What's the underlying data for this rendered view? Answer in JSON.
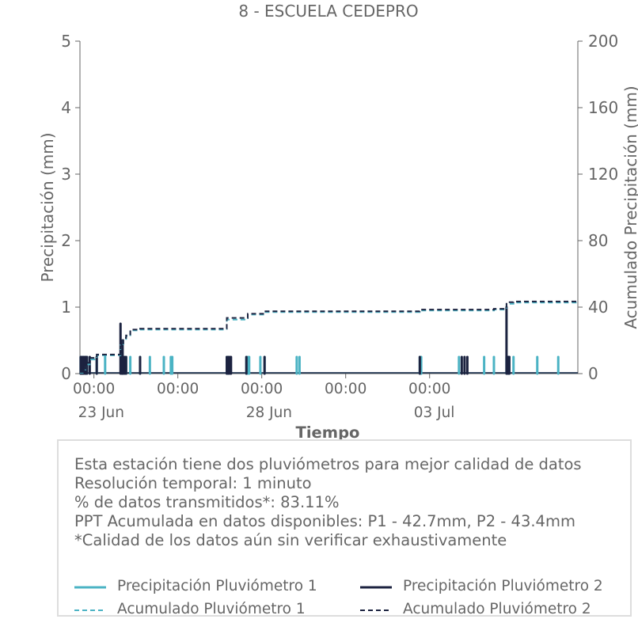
{
  "title": "8 - ESCUELA CEDEPRO",
  "colors": {
    "p1": "#4bb3c4",
    "p2": "#1c2340",
    "axis": "#666666",
    "box_border": "#dddddd"
  },
  "notes": [
    "Esta estación tiene dos pluviómetros para mejor calidad de datos",
    "Resolución temporal: 1 minuto",
    "% de datos transmitidos*: 83.11%",
    "PPT Acumulada en datos disponibles: P1 - 42.7mm, P2 - 43.4mm",
    "*Calidad de los datos aún sin verificar exhaustivamente"
  ],
  "legend": [
    {
      "label": "Precipitación Pluviómetro 1",
      "color": "#4bb3c4",
      "style": "solid"
    },
    {
      "label": "Precipitación Pluviómetro 2",
      "color": "#1c2340",
      "style": "solid"
    },
    {
      "label": "Acumulado Pluviómetro 1",
      "color": "#4bb3c4",
      "style": "dashed"
    },
    {
      "label": "Acumulado Pluviómetro 2",
      "color": "#1c2340",
      "style": "dashed"
    }
  ],
  "chart_data": {
    "type": "line",
    "xlabel": "Tiempo",
    "ylabel": "Precipitación (mm)",
    "y2label": "Acumulado Precipitación (mm)",
    "xlim": [
      "2023-06-22T14:00",
      "2023-07-07T10:00"
    ],
    "ylim": [
      0,
      5
    ],
    "y2lim": [
      0,
      200
    ],
    "yticks": [
      0,
      1,
      2,
      3,
      4,
      5
    ],
    "y2ticks": [
      0,
      40,
      80,
      120,
      160,
      200
    ],
    "xticks": [
      {
        "t": "2023-06-23T00:00",
        "labels": [
          "00:00",
          "23 Jun"
        ]
      },
      {
        "t": "2023-06-25T12:00",
        "labels": [
          "00:00"
        ]
      },
      {
        "t": "2023-06-28T00:00",
        "labels": [
          "00:00",
          "28 Jun"
        ]
      },
      {
        "t": "2023-06-30T12:00",
        "labels": [
          "00:00"
        ]
      },
      {
        "t": "2023-07-03T00:00",
        "labels": [
          "00:00",
          "03 Jul"
        ]
      }
    ],
    "series": [
      {
        "name": "Precipitación Pluviómetro 1",
        "kind": "bars",
        "x": [
          "2023-06-22T14:30",
          "2023-06-22T15:30",
          "2023-06-22T16:30",
          "2023-06-22T18:00",
          "2023-06-22T19:00",
          "2023-06-23T02:00",
          "2023-06-23T08:00",
          "2023-06-23T20:00",
          "2023-06-23T21:00",
          "2023-06-23T23:00",
          "2023-06-24T02:00",
          "2023-06-24T09:00",
          "2023-06-24T16:00",
          "2023-06-25T02:00",
          "2023-06-25T07:00",
          "2023-06-25T08:00",
          "2023-06-26T23:00",
          "2023-06-27T00:00",
          "2023-06-27T13:00",
          "2023-06-27T14:00",
          "2023-06-27T15:00",
          "2023-06-27T23:00",
          "2023-06-28T02:00",
          "2023-06-29T01:00",
          "2023-06-29T03:00",
          "2023-07-02T17:00",
          "2023-07-02T18:00",
          "2023-07-03T21:00",
          "2023-07-04T15:00",
          "2023-07-04T22:00",
          "2023-07-05T07:00",
          "2023-07-05T08:00",
          "2023-07-05T09:00",
          "2023-07-05T12:00",
          "2023-07-06T05:00",
          "2023-07-06T20:00"
        ],
        "values": [
          0.25,
          0.25,
          0.25,
          0.25,
          0.25,
          0.25,
          0.25,
          0.25,
          0.25,
          0.25,
          0.25,
          0.25,
          0.25,
          0.25,
          0.25,
          0.25,
          0.25,
          0.25,
          0.25,
          0.25,
          0.25,
          0.25,
          0.25,
          0.25,
          0.25,
          0.25,
          0.25,
          0.25,
          0.25,
          0.25,
          0.25,
          0.25,
          0.25,
          0.25,
          0.25,
          0.25
        ]
      },
      {
        "name": "Precipitación Pluviómetro 2",
        "kind": "bars",
        "x": [
          "2023-06-22T14:30",
          "2023-06-22T15:30",
          "2023-06-22T16:30",
          "2023-06-22T17:30",
          "2023-06-22T18:00",
          "2023-06-22T19:00",
          "2023-06-22T21:00",
          "2023-06-23T02:00",
          "2023-06-23T19:00",
          "2023-06-23T20:00",
          "2023-06-23T20:30",
          "2023-06-23T21:00",
          "2023-06-23T22:00",
          "2023-06-23T23:00",
          "2023-06-24T09:00",
          "2023-06-26T23:00",
          "2023-06-27T00:00",
          "2023-06-27T01:00",
          "2023-06-27T02:00",
          "2023-06-27T13:00",
          "2023-06-28T02:00",
          "2023-07-02T17:00",
          "2023-07-03T23:00",
          "2023-07-04T01:00",
          "2023-07-04T03:00",
          "2023-07-05T07:00",
          "2023-07-05T08:00",
          "2023-07-05T08:30",
          "2023-07-05T09:00"
        ],
        "values": [
          0.25,
          0.25,
          0.25,
          0.25,
          0.25,
          0.25,
          0.25,
          0.25,
          0.75,
          0.25,
          0.5,
          0.25,
          0.25,
          0.25,
          0.25,
          0.25,
          0.25,
          0.25,
          0.25,
          0.25,
          0.25,
          0.25,
          0.25,
          0.25,
          0.25,
          1.0,
          0.25,
          0.25,
          0.25
        ]
      },
      {
        "name": "Acumulado Pluviómetro 1",
        "kind": "step",
        "x": [
          "2023-06-22T14:00",
          "2023-06-22T16:00",
          "2023-06-22T18:00",
          "2023-06-22T21:00",
          "2023-06-23T02:00",
          "2023-06-23T08:00",
          "2023-06-23T19:00",
          "2023-06-23T21:00",
          "2023-06-23T23:00",
          "2023-06-24T02:00",
          "2023-06-24T09:00",
          "2023-06-26T23:00",
          "2023-06-27T14:00",
          "2023-06-28T02:00",
          "2023-07-02T17:00",
          "2023-07-04T22:00",
          "2023-07-05T07:00",
          "2023-07-05T12:00",
          "2023-07-07T10:00"
        ],
        "values": [
          0.5,
          2.5,
          5.5,
          8.5,
          11.0,
          11.0,
          17.0,
          20.0,
          22.5,
          26.0,
          26.5,
          32.5,
          35.5,
          37.0,
          38.0,
          38.5,
          42.0,
          42.7,
          42.7
        ]
      },
      {
        "name": "Acumulado Pluviómetro 2",
        "kind": "step",
        "x": [
          "2023-06-22T14:00",
          "2023-06-22T16:00",
          "2023-06-22T18:00",
          "2023-06-22T21:00",
          "2023-06-23T02:00",
          "2023-06-23T08:00",
          "2023-06-23T19:00",
          "2023-06-23T21:00",
          "2023-06-23T23:00",
          "2023-06-24T02:00",
          "2023-06-24T09:00",
          "2023-06-26T23:00",
          "2023-06-27T14:00",
          "2023-06-28T02:00",
          "2023-07-02T17:00",
          "2023-07-04T22:00",
          "2023-07-05T07:00",
          "2023-07-05T12:00",
          "2023-07-07T10:00"
        ],
        "values": [
          1.0,
          3.0,
          6.5,
          9.5,
          11.5,
          11.5,
          16.5,
          21.5,
          23.0,
          26.5,
          27.0,
          33.5,
          36.0,
          37.5,
          38.5,
          39.0,
          43.0,
          43.4,
          43.4
        ]
      }
    ],
    "grid": false,
    "legend_placement": "bottom"
  }
}
